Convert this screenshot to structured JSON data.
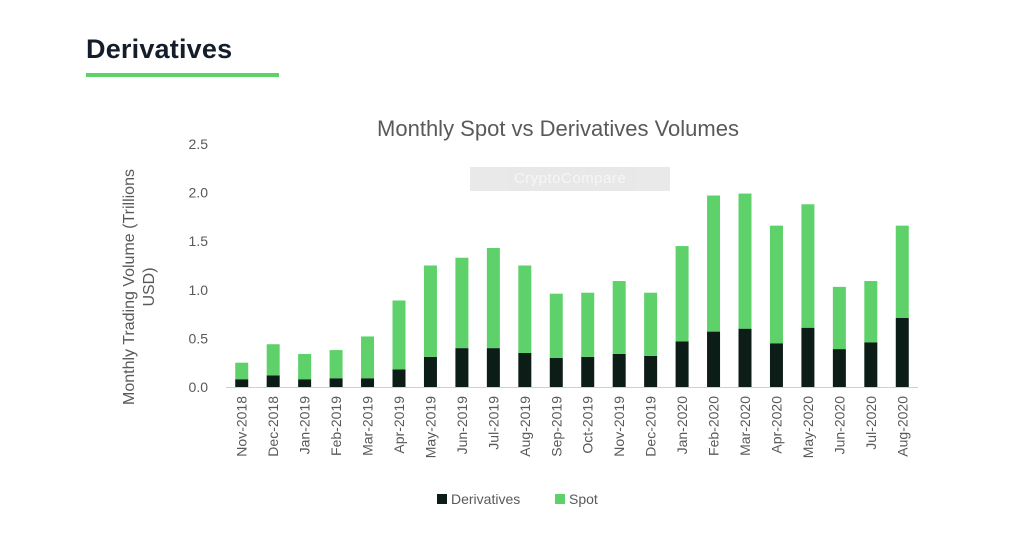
{
  "page": {
    "section_title": "Derivatives",
    "accent_color": "#5ed16b",
    "watermark_text": "CryptoCompare"
  },
  "chart_data": {
    "type": "bar",
    "stacked": true,
    "title": "Monthly Spot vs Derivatives Volumes",
    "xlabel": "",
    "ylabel": "Monthly Trading Volume (Trillions USD)",
    "ylim": [
      0,
      2.5
    ],
    "yticks": [
      "0.0",
      "0.5",
      "1.0",
      "1.5",
      "2.0",
      "2.5"
    ],
    "grid": false,
    "legend_position": "bottom",
    "categories": [
      "Nov-2018",
      "Dec-2018",
      "Jan-2019",
      "Feb-2019",
      "Mar-2019",
      "Apr-2019",
      "May-2019",
      "Jun-2019",
      "Jul-2019",
      "Aug-2019",
      "Sep-2019",
      "Oct-2019",
      "Nov-2019",
      "Dec-2019",
      "Jan-2020",
      "Feb-2020",
      "Mar-2020",
      "Apr-2020",
      "May-2020",
      "Jun-2020",
      "Jul-2020",
      "Aug-2020"
    ],
    "series": [
      {
        "name": "Derivatives",
        "color": "#0c1c17",
        "values": [
          0.08,
          0.12,
          0.08,
          0.09,
          0.09,
          0.18,
          0.31,
          0.4,
          0.4,
          0.35,
          0.3,
          0.31,
          0.34,
          0.32,
          0.47,
          0.57,
          0.6,
          0.45,
          0.61,
          0.39,
          0.46,
          0.71
        ]
      },
      {
        "name": "Spot",
        "color": "#5ed16b",
        "values": [
          0.17,
          0.32,
          0.26,
          0.29,
          0.43,
          0.71,
          0.94,
          0.93,
          1.03,
          0.9,
          0.66,
          0.66,
          0.75,
          0.65,
          0.98,
          1.4,
          1.39,
          1.21,
          1.27,
          0.64,
          0.63,
          0.95
        ]
      }
    ]
  }
}
